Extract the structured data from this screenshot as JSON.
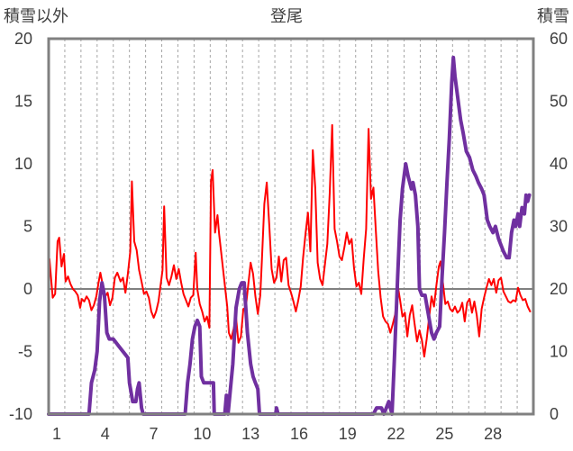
{
  "chart_data": {
    "type": "line",
    "title": "登尾",
    "left_axis_label": "積雪以外",
    "right_axis_label": "積雪",
    "left_ylim": [
      -10,
      20
    ],
    "left_yticks": [
      -10,
      -5,
      0,
      5,
      10,
      15,
      20
    ],
    "right_ylim": [
      0,
      60
    ],
    "right_yticks": [
      0,
      10,
      20,
      30,
      40,
      50,
      60
    ],
    "xlim": [
      0,
      30
    ],
    "xticks": [
      1,
      4,
      7,
      10,
      13,
      16,
      19,
      22,
      25,
      28
    ],
    "grid": "vertical-dashed",
    "series": [
      {
        "color": "#ff0000",
        "axis": "left",
        "points": [
          [
            0.05,
            2.4
          ],
          [
            0.25,
            -0.7
          ],
          [
            0.4,
            -0.4
          ],
          [
            0.55,
            3.8
          ],
          [
            0.65,
            4.1
          ],
          [
            0.8,
            1.8
          ],
          [
            0.95,
            2.8
          ],
          [
            1.05,
            0.6
          ],
          [
            1.2,
            1.0
          ],
          [
            1.35,
            0.4
          ],
          [
            1.5,
            0.0
          ],
          [
            1.65,
            -0.2
          ],
          [
            1.8,
            -0.5
          ],
          [
            1.95,
            -1.5
          ],
          [
            2.05,
            -0.8
          ],
          [
            2.2,
            -1.0
          ],
          [
            2.35,
            -0.6
          ],
          [
            2.5,
            -0.9
          ],
          [
            2.65,
            -1.7
          ],
          [
            2.8,
            -1.3
          ],
          [
            2.95,
            -0.6
          ],
          [
            3.1,
            0.6
          ],
          [
            3.2,
            1.3
          ],
          [
            3.35,
            0.3
          ],
          [
            3.5,
            -0.6
          ],
          [
            3.65,
            -0.3
          ],
          [
            3.8,
            -1.3
          ],
          [
            3.95,
            -0.7
          ],
          [
            4.1,
            0.9
          ],
          [
            4.25,
            1.3
          ],
          [
            4.45,
            0.6
          ],
          [
            4.6,
            0.9
          ],
          [
            4.75,
            -0.3
          ],
          [
            4.9,
            1.2
          ],
          [
            5.05,
            3.0
          ],
          [
            5.15,
            8.6
          ],
          [
            5.3,
            3.8
          ],
          [
            5.45,
            3.1
          ],
          [
            5.6,
            1.5
          ],
          [
            5.75,
            0.6
          ],
          [
            5.9,
            -0.4
          ],
          [
            6.05,
            -0.2
          ],
          [
            6.2,
            -0.7
          ],
          [
            6.35,
            -1.8
          ],
          [
            6.5,
            -2.3
          ],
          [
            6.65,
            -1.8
          ],
          [
            6.8,
            -1.0
          ],
          [
            6.95,
            0.5
          ],
          [
            7.05,
            1.5
          ],
          [
            7.15,
            6.6
          ],
          [
            7.3,
            0.9
          ],
          [
            7.45,
            0.3
          ],
          [
            7.6,
            1.0
          ],
          [
            7.75,
            1.9
          ],
          [
            7.9,
            0.8
          ],
          [
            8.05,
            1.6
          ],
          [
            8.2,
            0.5
          ],
          [
            8.35,
            -0.4
          ],
          [
            8.5,
            -0.9
          ],
          [
            8.65,
            -1.4
          ],
          [
            8.8,
            -0.7
          ],
          [
            8.95,
            -0.5
          ],
          [
            9.1,
            2.9
          ],
          [
            9.2,
            0.0
          ],
          [
            9.35,
            -1.2
          ],
          [
            9.5,
            -1.8
          ],
          [
            9.65,
            -2.6
          ],
          [
            9.8,
            -2.2
          ],
          [
            9.95,
            -3.1
          ],
          [
            10.05,
            8.6
          ],
          [
            10.15,
            9.5
          ],
          [
            10.3,
            4.5
          ],
          [
            10.45,
            5.9
          ],
          [
            10.55,
            4.4
          ],
          [
            11.05,
            -1.4
          ],
          [
            11.15,
            -3.5
          ],
          [
            11.3,
            -4.0
          ],
          [
            11.45,
            -3.2
          ],
          [
            11.6,
            -2.3
          ],
          [
            11.75,
            -4.3
          ],
          [
            11.9,
            -3.8
          ],
          [
            12.05,
            -1.6
          ],
          [
            12.2,
            -1.5
          ],
          [
            12.35,
            0.3
          ],
          [
            12.5,
            2.1
          ],
          [
            12.65,
            1.2
          ],
          [
            12.8,
            -0.6
          ],
          [
            12.95,
            -2.0
          ],
          [
            13.1,
            -0.5
          ],
          [
            13.2,
            2.3
          ],
          [
            13.35,
            6.8
          ],
          [
            13.5,
            8.5
          ],
          [
            13.65,
            5.2
          ],
          [
            13.8,
            1.6
          ],
          [
            13.95,
            0.5
          ],
          [
            14.1,
            0.9
          ],
          [
            14.25,
            2.6
          ],
          [
            14.4,
            0.6
          ],
          [
            14.55,
            2.3
          ],
          [
            14.7,
            2.5
          ],
          [
            14.85,
            0.3
          ],
          [
            15.0,
            -0.3
          ],
          [
            15.15,
            -1.0
          ],
          [
            15.3,
            -1.8
          ],
          [
            15.45,
            -0.9
          ],
          [
            15.6,
            0.2
          ],
          [
            15.75,
            2.5
          ],
          [
            15.9,
            4.4
          ],
          [
            16.05,
            6.1
          ],
          [
            16.2,
            3.0
          ],
          [
            16.35,
            11.1
          ],
          [
            16.5,
            8.1
          ],
          [
            16.65,
            2.1
          ],
          [
            16.8,
            0.8
          ],
          [
            16.95,
            0.3
          ],
          [
            17.1,
            2.0
          ],
          [
            17.25,
            3.6
          ],
          [
            17.4,
            7.7
          ],
          [
            17.55,
            13.1
          ],
          [
            17.7,
            4.8
          ],
          [
            17.85,
            3.8
          ],
          [
            18.0,
            2.6
          ],
          [
            18.15,
            2.3
          ],
          [
            18.3,
            3.3
          ],
          [
            18.45,
            4.5
          ],
          [
            18.6,
            3.6
          ],
          [
            18.75,
            4.0
          ],
          [
            18.9,
            1.7
          ],
          [
            19.05,
            0.2
          ],
          [
            19.2,
            0.5
          ],
          [
            19.35,
            -0.4
          ],
          [
            19.5,
            2.4
          ],
          [
            19.65,
            4.8
          ],
          [
            19.8,
            12.8
          ],
          [
            19.95,
            7.2
          ],
          [
            20.1,
            8.1
          ],
          [
            20.25,
            4.6
          ],
          [
            20.4,
            1.4
          ],
          [
            20.55,
            -0.7
          ],
          [
            20.7,
            -2.2
          ],
          [
            20.85,
            -2.6
          ],
          [
            21.0,
            -2.8
          ],
          [
            21.15,
            -3.5
          ],
          [
            21.3,
            -2.8
          ],
          [
            21.45,
            -2.0
          ],
          [
            21.6,
            0.3
          ],
          [
            21.75,
            -0.9
          ],
          [
            21.9,
            -2.2
          ],
          [
            22.05,
            -1.9
          ],
          [
            22.2,
            -3.8
          ],
          [
            22.35,
            -2.1
          ],
          [
            22.5,
            -1.3
          ],
          [
            22.65,
            -2.8
          ],
          [
            22.8,
            -4.2
          ],
          [
            22.95,
            -3.3
          ],
          [
            23.1,
            -4.1
          ],
          [
            23.25,
            -5.4
          ],
          [
            23.4,
            -4.0
          ],
          [
            23.55,
            -2.3
          ],
          [
            23.7,
            -0.6
          ],
          [
            23.85,
            -1.4
          ],
          [
            24.0,
            0.3
          ],
          [
            24.15,
            1.8
          ],
          [
            24.25,
            2.2
          ],
          [
            24.4,
            0.5
          ],
          [
            24.55,
            -1.2
          ],
          [
            24.7,
            -1.0
          ],
          [
            24.85,
            -1.6
          ],
          [
            25.0,
            -1.8
          ],
          [
            25.15,
            -1.4
          ],
          [
            25.3,
            -1.9
          ],
          [
            25.45,
            -1.7
          ],
          [
            25.6,
            -1.1
          ],
          [
            25.75,
            -2.6
          ],
          [
            25.9,
            -1.1
          ],
          [
            26.05,
            -0.8
          ],
          [
            26.2,
            -1.9
          ],
          [
            26.35,
            -1.0
          ],
          [
            26.5,
            -2.1
          ],
          [
            26.65,
            -3.8
          ],
          [
            26.8,
            -1.6
          ],
          [
            26.95,
            -0.7
          ],
          [
            27.1,
            0.1
          ],
          [
            27.25,
            0.8
          ],
          [
            27.4,
            0.3
          ],
          [
            27.55,
            0.8
          ],
          [
            27.7,
            -0.3
          ],
          [
            27.85,
            0.7
          ],
          [
            28.0,
            0.9
          ],
          [
            28.15,
            -0.2
          ],
          [
            28.3,
            -0.6
          ],
          [
            28.45,
            -1.0
          ],
          [
            28.6,
            -1.1
          ],
          [
            28.75,
            -0.9
          ],
          [
            28.9,
            -1.0
          ],
          [
            29.05,
            0.1
          ],
          [
            29.2,
            -0.5
          ],
          [
            29.35,
            -0.9
          ],
          [
            29.5,
            -0.8
          ],
          [
            29.65,
            -1.4
          ],
          [
            29.8,
            -1.8
          ]
        ]
      },
      {
        "color": "#7030a0",
        "axis": "right",
        "points": [
          [
            0.0,
            0
          ],
          [
            2.5,
            0
          ],
          [
            2.65,
            5
          ],
          [
            2.85,
            7
          ],
          [
            3.0,
            10
          ],
          [
            3.15,
            18
          ],
          [
            3.3,
            21
          ],
          [
            3.45,
            19
          ],
          [
            3.6,
            13
          ],
          [
            3.75,
            12
          ],
          [
            4.0,
            12
          ],
          [
            4.3,
            11
          ],
          [
            4.6,
            10
          ],
          [
            4.9,
            9
          ],
          [
            5.0,
            5
          ],
          [
            5.2,
            2
          ],
          [
            5.4,
            2
          ],
          [
            5.5,
            4
          ],
          [
            5.6,
            5
          ],
          [
            5.75,
            1
          ],
          [
            5.85,
            0
          ],
          [
            8.45,
            0
          ],
          [
            8.6,
            5
          ],
          [
            8.75,
            8
          ],
          [
            8.9,
            12
          ],
          [
            9.05,
            14
          ],
          [
            9.2,
            15
          ],
          [
            9.35,
            14
          ],
          [
            9.45,
            6
          ],
          [
            9.6,
            5
          ],
          [
            10.2,
            5
          ],
          [
            10.25,
            0
          ],
          [
            10.9,
            0
          ],
          [
            11.0,
            3
          ],
          [
            11.1,
            0
          ],
          [
            11.4,
            8
          ],
          [
            11.6,
            17
          ],
          [
            11.8,
            20
          ],
          [
            11.95,
            21
          ],
          [
            12.1,
            21
          ],
          [
            12.3,
            13
          ],
          [
            12.5,
            8
          ],
          [
            12.65,
            6
          ],
          [
            12.8,
            5
          ],
          [
            12.95,
            4
          ],
          [
            13.05,
            0
          ],
          [
            14.05,
            0
          ],
          [
            14.1,
            1
          ],
          [
            14.2,
            0
          ],
          [
            20.1,
            0
          ],
          [
            20.3,
            1
          ],
          [
            20.6,
            1
          ],
          [
            20.75,
            0
          ],
          [
            20.9,
            1
          ],
          [
            21.05,
            2
          ],
          [
            21.25,
            0
          ],
          [
            21.4,
            9
          ],
          [
            21.6,
            22
          ],
          [
            21.75,
            31
          ],
          [
            21.9,
            36
          ],
          [
            22.1,
            40
          ],
          [
            22.25,
            38
          ],
          [
            22.45,
            36
          ],
          [
            22.55,
            37
          ],
          [
            22.7,
            35
          ],
          [
            22.85,
            30
          ],
          [
            22.95,
            20
          ],
          [
            23.1,
            19
          ],
          [
            23.3,
            19
          ],
          [
            23.5,
            16
          ],
          [
            23.7,
            13
          ],
          [
            23.85,
            12
          ],
          [
            24.0,
            13
          ],
          [
            24.2,
            14
          ],
          [
            24.35,
            22
          ],
          [
            24.5,
            29
          ],
          [
            24.65,
            37
          ],
          [
            24.8,
            44
          ],
          [
            24.95,
            53
          ],
          [
            25.05,
            57
          ],
          [
            25.15,
            54
          ],
          [
            25.3,
            51
          ],
          [
            25.5,
            47
          ],
          [
            25.65,
            45
          ],
          [
            25.85,
            42
          ],
          [
            26.05,
            41
          ],
          [
            26.25,
            39
          ],
          [
            26.45,
            38
          ],
          [
            26.6,
            37
          ],
          [
            26.8,
            36
          ],
          [
            26.95,
            35
          ],
          [
            27.05,
            33
          ],
          [
            27.15,
            31
          ],
          [
            27.3,
            30
          ],
          [
            27.5,
            29
          ],
          [
            27.65,
            30
          ],
          [
            27.85,
            28
          ],
          [
            28.0,
            27
          ],
          [
            28.15,
            26
          ],
          [
            28.35,
            25
          ],
          [
            28.5,
            25
          ],
          [
            28.65,
            29
          ],
          [
            28.8,
            31
          ],
          [
            28.9,
            30
          ],
          [
            29.05,
            32
          ],
          [
            29.15,
            30
          ],
          [
            29.3,
            33
          ],
          [
            29.45,
            32
          ],
          [
            29.55,
            35
          ],
          [
            29.65,
            34
          ],
          [
            29.75,
            35
          ]
        ]
      }
    ]
  }
}
